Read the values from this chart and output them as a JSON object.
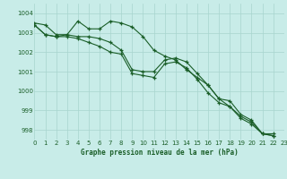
{
  "title": "Graphe pression niveau de la mer (hPa)",
  "bg_color": "#c8ece8",
  "grid_color": "#a8d4ce",
  "line_color": "#1a5e28",
  "x_min": 0,
  "x_max": 23,
  "y_min": 997.5,
  "y_max": 1004.5,
  "yticks": [
    998,
    999,
    1000,
    1001,
    1002,
    1003,
    1004
  ],
  "xticks": [
    0,
    1,
    2,
    3,
    4,
    5,
    6,
    7,
    8,
    9,
    10,
    11,
    12,
    13,
    14,
    15,
    16,
    17,
    18,
    19,
    20,
    21,
    22,
    23
  ],
  "series": [
    [
      1003.5,
      1003.4,
      1002.9,
      1002.9,
      1003.6,
      1003.2,
      1003.2,
      1003.6,
      1003.5,
      1003.3,
      1002.8,
      1002.1,
      1001.8,
      1001.6,
      1001.1,
      1000.7,
      1000.3,
      999.6,
      999.2,
      998.7,
      998.4,
      997.8,
      997.8
    ],
    [
      1003.4,
      1002.9,
      1002.8,
      1002.9,
      1002.8,
      1002.8,
      1002.7,
      1002.5,
      1002.1,
      1001.1,
      1001.0,
      1001.0,
      1001.6,
      1001.7,
      1001.5,
      1000.9,
      1000.3,
      999.6,
      999.5,
      998.8,
      998.5,
      997.8,
      997.7
    ],
    [
      1003.4,
      1002.9,
      1002.8,
      1002.8,
      1002.7,
      1002.5,
      1002.3,
      1002.0,
      1001.9,
      1000.9,
      1000.8,
      1000.7,
      1001.4,
      1001.5,
      1001.2,
      1000.6,
      999.9,
      999.4,
      999.2,
      998.6,
      998.3,
      997.8,
      997.7
    ]
  ]
}
